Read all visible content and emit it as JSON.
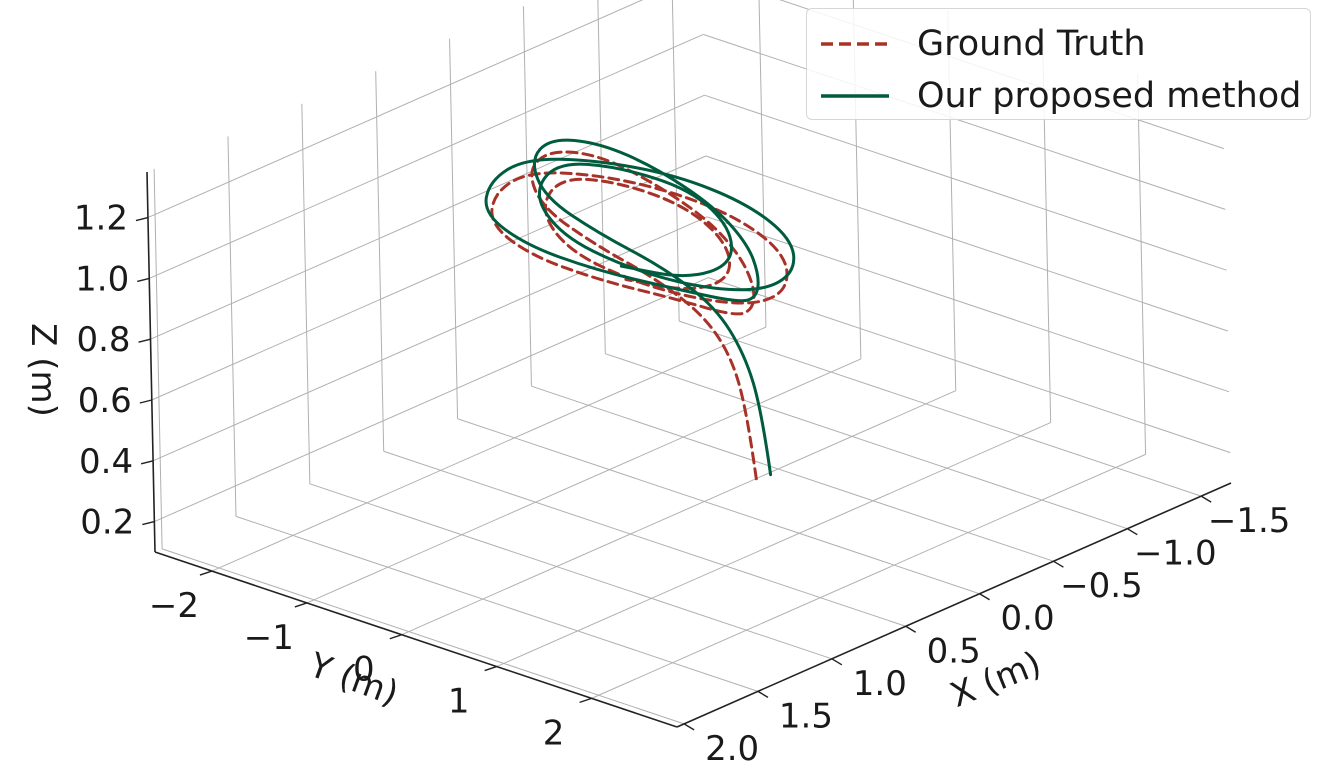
{
  "chart_data": {
    "type": "line",
    "projection": "3d",
    "xlabel": "X (m)",
    "ylabel": "Y (m)",
    "zlabel": "Z (m)",
    "x_ticks": [
      "2.0",
      "1.5",
      "1.0",
      "0.5",
      "0.0",
      "−0.5",
      "−1.0",
      "−1.5"
    ],
    "y_ticks": [
      "−2",
      "−1",
      "0",
      "1",
      "2"
    ],
    "z_ticks": [
      "0.2",
      "0.4",
      "0.6",
      "0.8",
      "1.0",
      "1.2"
    ],
    "xlim": [
      -1.8,
      2.1
    ],
    "ylim": [
      -2.6,
      2.9
    ],
    "zlim": [
      0.1,
      1.35
    ],
    "grid": true,
    "legend_position": "top-right",
    "series": [
      {
        "name": "Ground Truth",
        "color": "#a83228",
        "style": "dashed",
        "points": [
          [
            -0.12,
            0.42,
            0.2
          ],
          [
            -0.12,
            0.34,
            0.4
          ],
          [
            -0.1,
            0.22,
            0.58
          ],
          [
            -0.02,
            0.05,
            0.72
          ],
          [
            0.12,
            -0.25,
            0.84
          ],
          [
            0.3,
            -0.6,
            0.95
          ],
          [
            0.4,
            -1.0,
            1.05
          ],
          [
            0.3,
            -1.3,
            1.12
          ],
          [
            0.05,
            -1.45,
            1.12
          ],
          [
            -0.25,
            -1.4,
            1.05
          ],
          [
            -0.45,
            -1.15,
            0.95
          ],
          [
            -0.55,
            -0.7,
            0.85
          ],
          [
            -0.45,
            -0.2,
            0.8
          ],
          [
            -0.25,
            0.25,
            0.78
          ],
          [
            0.0,
            0.6,
            0.8
          ],
          [
            0.25,
            0.8,
            0.85
          ],
          [
            0.55,
            0.6,
            0.95
          ],
          [
            0.8,
            0.2,
            1.02
          ],
          [
            0.95,
            -0.3,
            1.08
          ],
          [
            0.9,
            -0.8,
            1.12
          ],
          [
            0.6,
            -1.2,
            1.12
          ],
          [
            0.2,
            -1.45,
            1.08
          ],
          [
            -0.2,
            -1.35,
            1.0
          ],
          [
            -0.5,
            -1.0,
            0.92
          ],
          [
            -0.65,
            -0.5,
            0.85
          ],
          [
            -0.6,
            0.05,
            0.8
          ],
          [
            -0.35,
            0.45,
            0.78
          ],
          [
            0.0,
            0.65,
            0.82
          ],
          [
            0.35,
            0.55,
            0.9
          ],
          [
            0.6,
            0.2,
            0.98
          ],
          [
            0.7,
            -0.3,
            1.05
          ],
          [
            0.55,
            -0.8,
            1.1
          ],
          [
            0.2,
            -1.1,
            1.1
          ],
          [
            -0.15,
            -1.0,
            1.02
          ],
          [
            -0.35,
            -0.6,
            0.94
          ],
          [
            -0.3,
            -0.1,
            0.88
          ],
          [
            -0.05,
            0.3,
            0.86
          ],
          [
            0.3,
            0.4,
            0.9
          ],
          [
            0.55,
            0.1,
            0.96
          ]
        ]
      },
      {
        "name": "Our proposed method",
        "color": "#005c3e",
        "style": "solid",
        "points": [
          [
            -0.2,
            0.45,
            0.2
          ],
          [
            -0.2,
            0.37,
            0.4
          ],
          [
            -0.17,
            0.25,
            0.58
          ],
          [
            -0.08,
            0.08,
            0.74
          ],
          [
            0.08,
            -0.22,
            0.87
          ],
          [
            0.27,
            -0.6,
            0.98
          ],
          [
            0.38,
            -1.0,
            1.08
          ],
          [
            0.28,
            -1.3,
            1.15
          ],
          [
            0.02,
            -1.48,
            1.15
          ],
          [
            -0.28,
            -1.42,
            1.08
          ],
          [
            -0.5,
            -1.15,
            0.98
          ],
          [
            -0.6,
            -0.7,
            0.88
          ],
          [
            -0.5,
            -0.2,
            0.83
          ],
          [
            -0.28,
            0.25,
            0.82
          ],
          [
            -0.02,
            0.62,
            0.84
          ],
          [
            0.25,
            0.85,
            0.9
          ],
          [
            0.57,
            0.62,
            0.99
          ],
          [
            0.83,
            0.2,
            1.06
          ],
          [
            0.98,
            -0.3,
            1.12
          ],
          [
            0.93,
            -0.82,
            1.16
          ],
          [
            0.62,
            -1.22,
            1.16
          ],
          [
            0.2,
            -1.48,
            1.12
          ],
          [
            -0.22,
            -1.38,
            1.04
          ],
          [
            -0.55,
            -1.02,
            0.96
          ],
          [
            -0.7,
            -0.5,
            0.89
          ],
          [
            -0.65,
            0.05,
            0.84
          ],
          [
            -0.38,
            0.48,
            0.83
          ],
          [
            0.0,
            0.7,
            0.87
          ],
          [
            0.38,
            0.58,
            0.95
          ],
          [
            0.63,
            0.2,
            1.03
          ],
          [
            0.73,
            -0.3,
            1.1
          ],
          [
            0.58,
            -0.82,
            1.15
          ],
          [
            0.22,
            -1.12,
            1.15
          ],
          [
            -0.15,
            -1.02,
            1.07
          ],
          [
            -0.38,
            -0.6,
            0.99
          ],
          [
            -0.32,
            -0.1,
            0.93
          ],
          [
            -0.05,
            0.32,
            0.91
          ],
          [
            0.33,
            0.42,
            0.95
          ],
          [
            0.58,
            0.1,
            1.01
          ]
        ]
      }
    ]
  }
}
